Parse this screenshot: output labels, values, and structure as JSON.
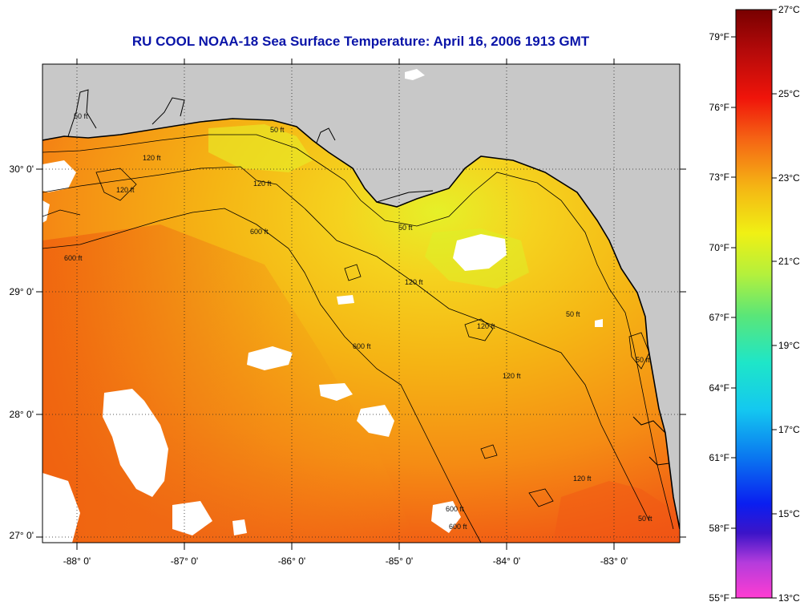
{
  "title": "RU COOL  NOAA-18  Sea Surface Temperature:  April 16, 2006 1913 GMT",
  "map": {
    "lon_range": [
      -88.3,
      -82.4
    ],
    "lat_range": [
      26.97,
      30.9
    ],
    "lon_ticks": [
      {
        "value": -88,
        "label": "-88° 0'"
      },
      {
        "value": -87,
        "label": "-87° 0'"
      },
      {
        "value": -86,
        "label": "-86° 0'"
      },
      {
        "value": -85,
        "label": "-85° 0'"
      },
      {
        "value": -84,
        "label": "-84° 0'"
      },
      {
        "value": -83,
        "label": "-83° 0'"
      }
    ],
    "lat_ticks": [
      {
        "value": 30,
        "label": "30° 0'"
      },
      {
        "value": 29,
        "label": "29° 0'"
      },
      {
        "value": 28,
        "label": "28° 0'"
      },
      {
        "value": 27,
        "label": "27° 0'"
      }
    ],
    "contour_labels": [
      "50 ft",
      "120 ft",
      "600 ft",
      "50 ft",
      "120 ft",
      "600 ft",
      "50 ft",
      "120 ft",
      "120 ft",
      "600 ft",
      "120 ft",
      "600 ft",
      "50 ft",
      "120 ft",
      "50 ft",
      "50 ft",
      "120 ft",
      "600 ft"
    ],
    "colors": {
      "land": "#c8c8c8",
      "cloud": "#ffffff",
      "water_warm": "#f05a14",
      "water_mid": "#f5b414",
      "water_cool": "#e6f028"
    }
  },
  "colorbar": {
    "celsius_labels": [
      "27°C",
      "25°C",
      "23°C",
      "21°C",
      "19°C",
      "17°C",
      "15°C",
      "13°C"
    ],
    "fahrenheit_labels": [
      "79°F",
      "76°F",
      "73°F",
      "70°F",
      "67°F",
      "64°F",
      "61°F",
      "58°F",
      "55°F"
    ],
    "celsius_range": [
      13,
      27
    ],
    "fahrenheit_range": [
      55,
      80.6
    ]
  }
}
